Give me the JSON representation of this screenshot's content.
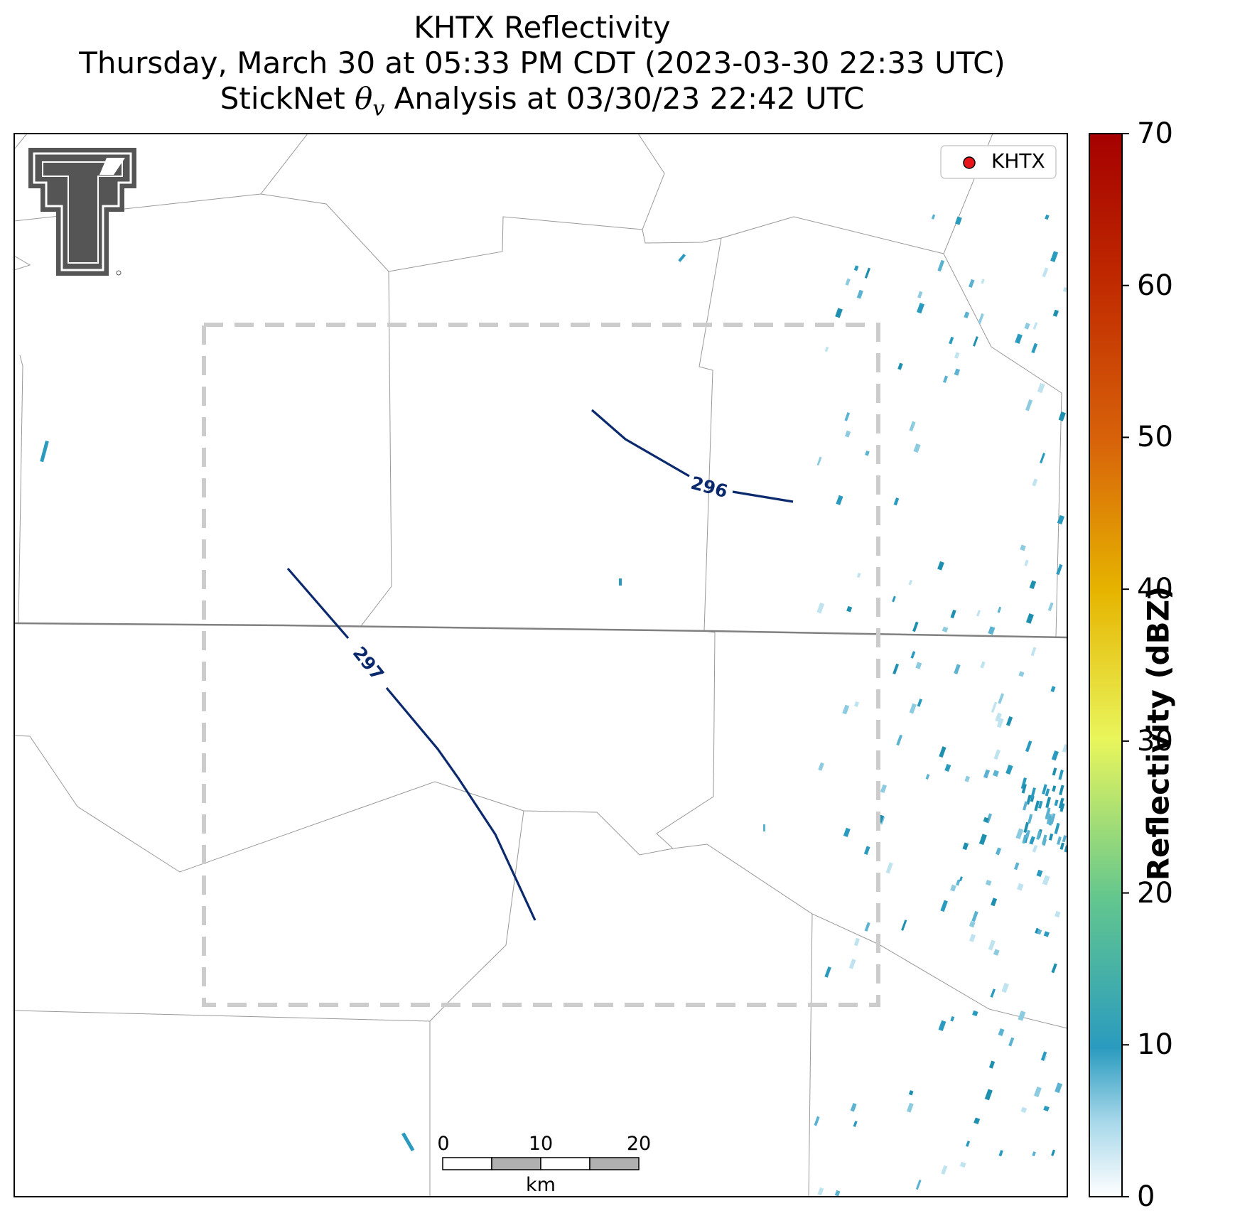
{
  "title": {
    "line1": "KHTX Reflectivity",
    "line2": "Thursday, March 30 at 05:33 PM CDT (2023-03-30 22:33 UTC)",
    "line3_prefix": "StickNet ",
    "line3_symbol": "θ",
    "line3_subscript": "v",
    "line3_suffix": " Analysis at 03/30/23 22:42 UTC"
  },
  "legend": {
    "label": "KHTX",
    "marker_color": "#e8141b"
  },
  "logo": {
    "name": "Texas Tech double-T",
    "color": "#666666"
  },
  "contours": [
    {
      "label": "296",
      "color": "#0b2a6e"
    },
    {
      "label": "297",
      "color": "#0b2a6e"
    }
  ],
  "scale_bar": {
    "ticks": [
      "0",
      "10",
      "20"
    ],
    "unit": "km"
  },
  "colorbar": {
    "title": "Reflectivity (dBZ)",
    "min": 0,
    "max": 70,
    "ticks": [
      "0",
      "10",
      "20",
      "30",
      "40",
      "50",
      "60",
      "70"
    ],
    "colors": [
      "#ffffff",
      "#2a9bbf",
      "#62c68e",
      "#e9f65c",
      "#e6b400",
      "#d8630a",
      "#a50000"
    ]
  },
  "analysis_box": {
    "style": "dashed",
    "color": "#cccccc"
  }
}
